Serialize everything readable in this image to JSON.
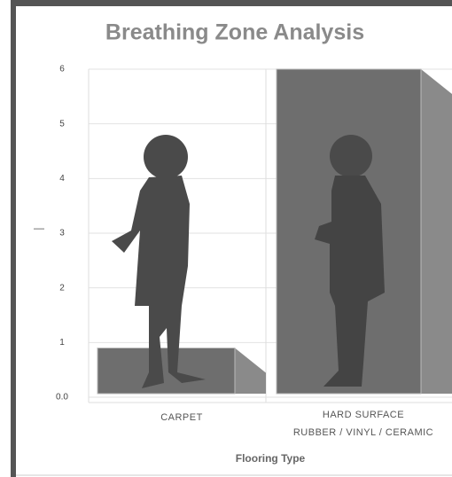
{
  "chart_data": {
    "type": "bar",
    "title": "Breathing Zone Analysis",
    "y_label": "—",
    "x_label": "Flooring Type",
    "categories": [
      "CARPET",
      "HARD SURFACE"
    ],
    "category_sublabels": [
      null,
      "RUBBER / VINYL / CERAMIC"
    ],
    "values": [
      0.9,
      6
    ],
    "color": "#6e6e6e",
    "ylim": [
      0,
      6
    ],
    "yticks": [
      {
        "value": 0,
        "label": "0.0"
      },
      1,
      2,
      3,
      4,
      5,
      6
    ],
    "grid": true
  }
}
